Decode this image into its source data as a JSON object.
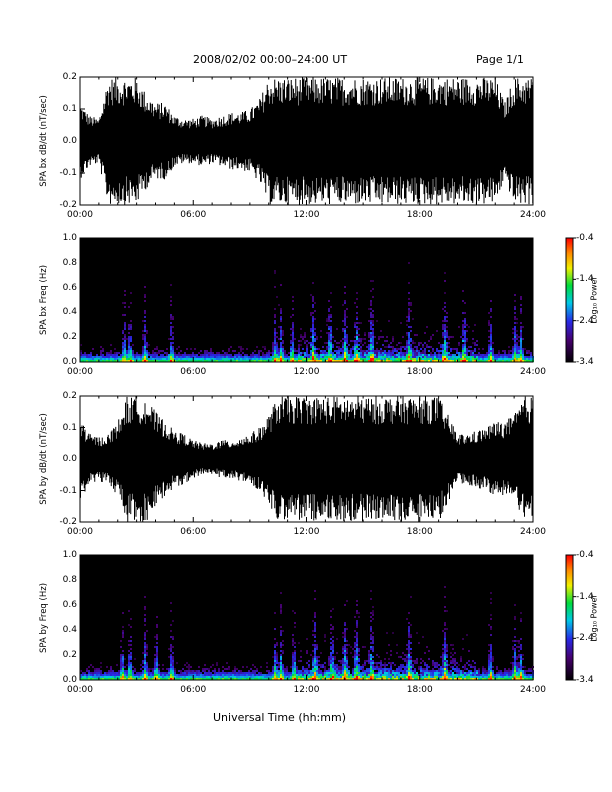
{
  "header": {
    "title": "2008/02/02  00:00–24:00 UT",
    "page": "Page 1/1"
  },
  "x_axis_title": "Universal Time (hh:mm)",
  "chart_data": [
    {
      "type": "line",
      "id": "bx-dbdt",
      "ylabel": "SPA bx dB/dt (nT/sec)",
      "xlim": [
        0,
        24
      ],
      "ylim": [
        -0.2,
        0.2
      ],
      "xticks": [
        "00:00",
        "06:00",
        "12:00",
        "18:00",
        "24:00"
      ],
      "yticks": [
        "-0.2",
        "-0.1",
        "0.0",
        "0.1",
        "0.2"
      ],
      "ytick_values": [
        -0.2,
        -0.1,
        0.0,
        0.1,
        0.2
      ],
      "envelope_hours": [
        0,
        0.5,
        1,
        1.5,
        2,
        2.5,
        3,
        3.5,
        4,
        4.5,
        5,
        5.5,
        6,
        6.5,
        7,
        7.5,
        8,
        8.5,
        9,
        9.5,
        10,
        10.5,
        11,
        11.5,
        12,
        12.5,
        13,
        13.5,
        14,
        14.5,
        15,
        15.5,
        16,
        16.5,
        17,
        17.5,
        18,
        18.5,
        19,
        19.5,
        20,
        20.5,
        21,
        21.5,
        22,
        22.5,
        23,
        23.5,
        24
      ],
      "envelope_amplitude": [
        0.12,
        0.08,
        0.07,
        0.2,
        0.2,
        0.2,
        0.2,
        0.15,
        0.12,
        0.12,
        0.08,
        0.07,
        0.07,
        0.08,
        0.07,
        0.08,
        0.09,
        0.09,
        0.1,
        0.13,
        0.2,
        0.2,
        0.2,
        0.2,
        0.2,
        0.2,
        0.2,
        0.2,
        0.2,
        0.2,
        0.2,
        0.2,
        0.2,
        0.2,
        0.2,
        0.2,
        0.2,
        0.2,
        0.2,
        0.2,
        0.2,
        0.2,
        0.2,
        0.2,
        0.2,
        0.12,
        0.2,
        0.2,
        0.2
      ]
    },
    {
      "type": "heatmap",
      "id": "bx-freq",
      "ylabel": "SPA bx Freq (Hz)",
      "xlim": [
        0,
        24
      ],
      "ylim": [
        0,
        1
      ],
      "xticks": [
        "00:00",
        "06:00",
        "12:00",
        "18:00",
        "24:00"
      ],
      "yticks": [
        "0.0",
        "0.2",
        "0.4",
        "0.6",
        "0.8",
        "1.0"
      ],
      "ytick_values": [
        0,
        0.2,
        0.4,
        0.6,
        0.8,
        1.0
      ],
      "colorbar": {
        "label": "Log₁₀ Power",
        "ticks": [
          "-0.4",
          "-1.4",
          "-2.4",
          "-3.4"
        ],
        "tick_values": [
          -0.4,
          -1.4,
          -2.4,
          -3.4
        ],
        "range": [
          -3.4,
          -0.4
        ]
      },
      "bursts_hours": [
        2.3,
        2.6,
        3.4,
        4.8,
        10.3,
        10.6,
        11.2,
        12.3,
        13.2,
        14.0,
        14.6,
        15.4,
        17.4,
        19.3,
        20.3,
        21.7,
        23.0,
        23.3
      ]
    },
    {
      "type": "line",
      "id": "by-dbdt",
      "ylabel": "SPA by dB/dt (nT/sec)",
      "xlim": [
        0,
        24
      ],
      "ylim": [
        -0.2,
        0.2
      ],
      "xticks": [
        "00:00",
        "06:00",
        "12:00",
        "18:00",
        "24:00"
      ],
      "yticks": [
        "-0.2",
        "-0.1",
        "0.0",
        "0.1",
        "0.2"
      ],
      "ytick_values": [
        -0.2,
        -0.1,
        0.0,
        0.1,
        0.2
      ],
      "envelope_hours": [
        0,
        0.5,
        1,
        1.5,
        2,
        2.5,
        3,
        3.5,
        4,
        4.5,
        5,
        5.5,
        6,
        6.5,
        7,
        7.5,
        8,
        8.5,
        9,
        9.5,
        10,
        10.5,
        11,
        11.5,
        12,
        12.5,
        13,
        13.5,
        14,
        14.5,
        15,
        15.5,
        16,
        16.5,
        17,
        17.5,
        18,
        18.5,
        19,
        19.5,
        20,
        20.5,
        21,
        21.5,
        22,
        22.5,
        23,
        23.5,
        24
      ],
      "envelope_amplitude": [
        0.13,
        0.08,
        0.07,
        0.08,
        0.12,
        0.2,
        0.2,
        0.2,
        0.15,
        0.12,
        0.09,
        0.08,
        0.06,
        0.05,
        0.05,
        0.06,
        0.06,
        0.07,
        0.08,
        0.1,
        0.14,
        0.2,
        0.2,
        0.2,
        0.2,
        0.2,
        0.2,
        0.2,
        0.2,
        0.2,
        0.2,
        0.2,
        0.2,
        0.2,
        0.2,
        0.2,
        0.2,
        0.2,
        0.2,
        0.14,
        0.08,
        0.08,
        0.09,
        0.1,
        0.12,
        0.12,
        0.14,
        0.2,
        0.2
      ]
    },
    {
      "type": "heatmap",
      "id": "by-freq",
      "ylabel": "SPA by Freq (Hz)",
      "xlim": [
        0,
        24
      ],
      "ylim": [
        0,
        1
      ],
      "xticks": [
        "00:00",
        "06:00",
        "12:00",
        "18:00",
        "24:00"
      ],
      "yticks": [
        "0.0",
        "0.2",
        "0.4",
        "0.6",
        "0.8",
        "1.0"
      ],
      "ytick_values": [
        0,
        0.2,
        0.4,
        0.6,
        0.8,
        1.0
      ],
      "colorbar": {
        "label": "Log₁₀ Power",
        "ticks": [
          "-0.4",
          "-1.4",
          "-2.4",
          "-3.4"
        ],
        "tick_values": [
          -0.4,
          -1.4,
          -2.4,
          -3.4
        ],
        "range": [
          -3.4,
          -0.4
        ]
      },
      "bursts_hours": [
        2.2,
        2.6,
        3.4,
        4.0,
        4.8,
        10.3,
        10.6,
        11.3,
        12.4,
        13.3,
        14.0,
        14.6,
        15.4,
        17.4,
        19.3,
        21.7,
        23.0,
        23.3
      ]
    }
  ]
}
